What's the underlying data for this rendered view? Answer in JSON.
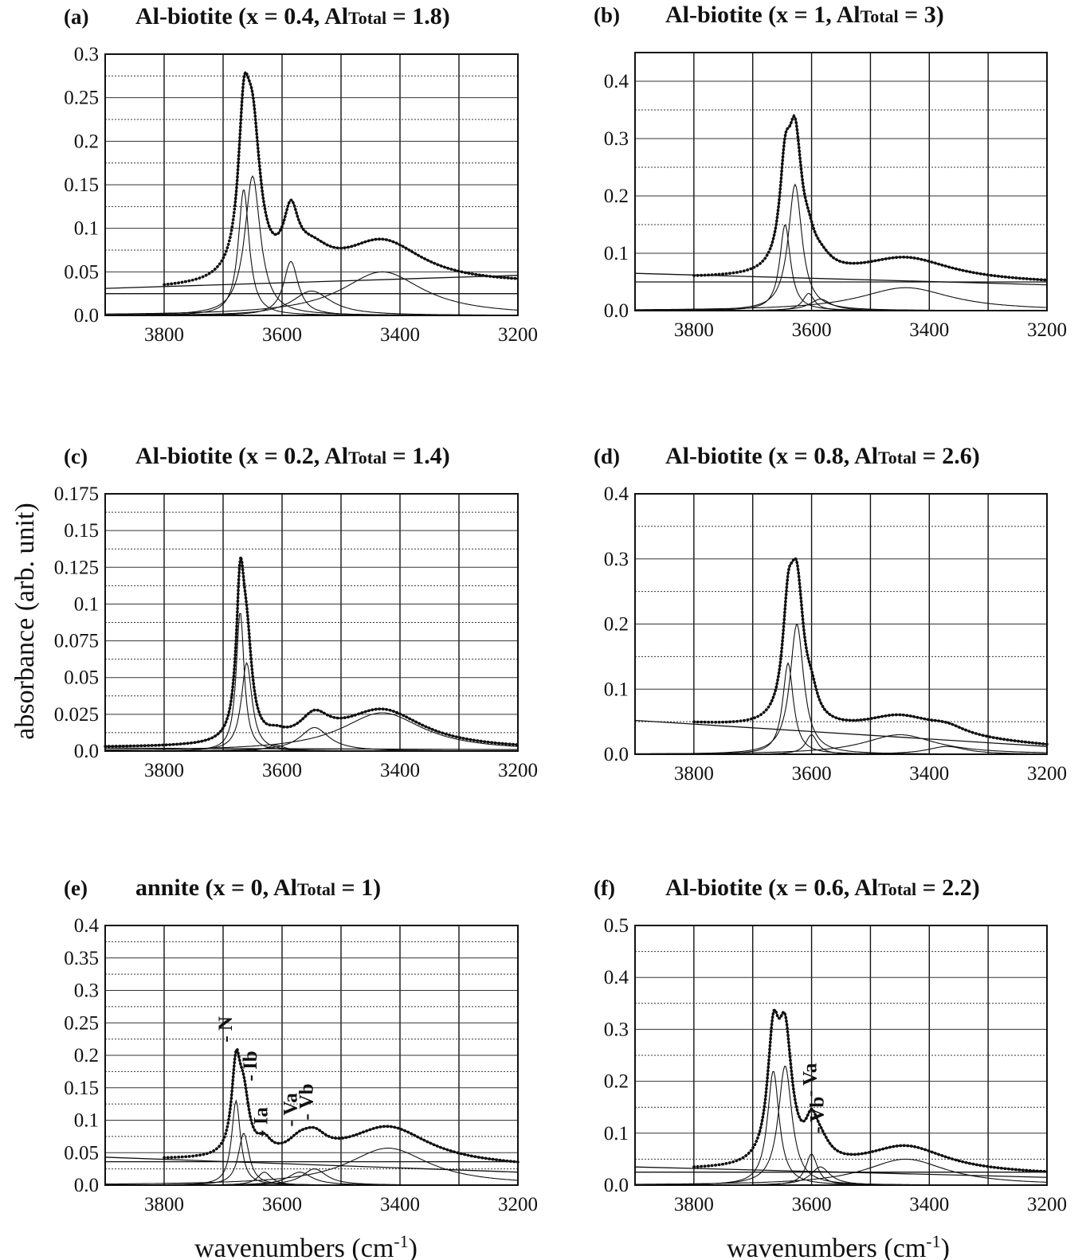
{
  "figure": {
    "ylabel": "absorbance (arb. unit)",
    "xlabel": "wavenumbers (cm-1)",
    "xlabel_main": "wavenumbers (cm",
    "xlabel_sup": "-1",
    "xlabel_close": ")"
  },
  "chart_data": [
    {
      "type": "line",
      "panel": "(a)",
      "title_main": "Al-biotite (x = 0.4, Al",
      "title_sub": "Total",
      "title_end": " = 1.8)",
      "xlim": [
        3900,
        3200
      ],
      "x_ticks": [
        3800,
        3600,
        3400,
        3200
      ],
      "ylim": [
        0,
        0.3
      ],
      "y_ticks": [
        0.0,
        0.05,
        0.1,
        0.15,
        0.2,
        0.25,
        0.3
      ],
      "y_tick_labels": [
        "0.0",
        "0.05",
        "0.1",
        "0.15",
        "0.2",
        "0.25",
        "0.3"
      ],
      "grid": true,
      "baselines": [
        {
          "x": [
            3900,
            3200
          ],
          "y": [
            0.031,
            0.046
          ]
        },
        {
          "x": [
            3900,
            3200
          ],
          "y": [
            0.025,
            0.025
          ]
        }
      ],
      "components": [
        {
          "center": 3665,
          "height": 0.145,
          "width": 11
        },
        {
          "center": 3650,
          "height": 0.16,
          "width": 16
        },
        {
          "center": 3585,
          "height": 0.062,
          "width": 15
        },
        {
          "center": 3550,
          "height": 0.028,
          "width": 40
        },
        {
          "center": 3430,
          "height": 0.05,
          "width": 85
        }
      ],
      "measured": {
        "x_start": 3800,
        "x_end": 3200
      },
      "envelope": {
        "x_start": 3680,
        "x_end": 3200
      },
      "labels": []
    },
    {
      "type": "line",
      "panel": "(b)",
      "title_main": "Al-biotite (x = 1, Al",
      "title_sub": "Total",
      "title_end": " = 3)",
      "xlim": [
        3900,
        3200
      ],
      "x_ticks": [
        3800,
        3600,
        3400,
        3200
      ],
      "ylim": [
        0,
        0.45
      ],
      "y_ticks": [
        0.0,
        0.1,
        0.2,
        0.3,
        0.4
      ],
      "y_tick_labels": [
        "0.0",
        "0.1",
        "0.2",
        "0.3",
        "0.4"
      ],
      "grid": true,
      "baselines": [
        {
          "x": [
            3900,
            3200
          ],
          "y": [
            0.065,
            0.045
          ]
        },
        {
          "x": [
            3900,
            3200
          ],
          "y": [
            0.05,
            0.05
          ]
        }
      ],
      "components": [
        {
          "center": 3645,
          "height": 0.15,
          "width": 11
        },
        {
          "center": 3628,
          "height": 0.22,
          "width": 14
        },
        {
          "center": 3605,
          "height": 0.03,
          "width": 12
        },
        {
          "center": 3585,
          "height": 0.02,
          "width": 22
        },
        {
          "center": 3440,
          "height": 0.04,
          "width": 95
        }
      ],
      "measured": {
        "x_start": 3800,
        "x_end": 3200
      },
      "envelope": {
        "x_start": 3670,
        "x_end": 3200
      },
      "labels": []
    },
    {
      "type": "line",
      "panel": "(c)",
      "title_main": "Al-biotite (x = 0.2, Al",
      "title_sub": "Total",
      "title_end": " = 1.4)",
      "xlim": [
        3900,
        3200
      ],
      "x_ticks": [
        3800,
        3600,
        3400,
        3200
      ],
      "ylim": [
        0,
        0.175
      ],
      "y_ticks": [
        0.0,
        0.025,
        0.05,
        0.075,
        0.1,
        0.125,
        0.15,
        0.175
      ],
      "y_tick_labels": [
        "0.0",
        "0.025",
        "0.05",
        "0.075",
        "0.1",
        "0.125",
        "0.15",
        "0.175"
      ],
      "grid": true,
      "baselines": [
        {
          "x": [
            3900,
            3200
          ],
          "y": [
            0.002,
            0.001
          ]
        }
      ],
      "components": [
        {
          "center": 3671,
          "height": 0.095,
          "width": 8
        },
        {
          "center": 3660,
          "height": 0.06,
          "width": 11
        },
        {
          "center": 3610,
          "height": 0.004,
          "width": 18
        },
        {
          "center": 3545,
          "height": 0.016,
          "width": 30
        },
        {
          "center": 3430,
          "height": 0.026,
          "width": 85
        }
      ],
      "measured": {
        "x_start": 3900,
        "x_end": 3200
      },
      "envelope": {
        "x_start": 3900,
        "x_end": 3200
      },
      "labels": []
    },
    {
      "type": "line",
      "panel": "(d)",
      "title_main": "Al-biotite (x = 0.8, Al",
      "title_sub": "Total",
      "title_end": " = 2.6)",
      "xlim": [
        3900,
        3200
      ],
      "x_ticks": [
        3800,
        3600,
        3400,
        3200
      ],
      "ylim": [
        0,
        0.4
      ],
      "y_ticks": [
        0.0,
        0.1,
        0.2,
        0.3,
        0.4
      ],
      "y_tick_labels": [
        "0.0",
        "0.1",
        "0.2",
        "0.3",
        "0.4"
      ],
      "grid": true,
      "baselines": [
        {
          "x": [
            3900,
            3200
          ],
          "y": [
            0.052,
            0.012
          ]
        }
      ],
      "components": [
        {
          "center": 3640,
          "height": 0.14,
          "width": 11
        },
        {
          "center": 3625,
          "height": 0.2,
          "width": 14
        },
        {
          "center": 3600,
          "height": 0.03,
          "width": 12
        },
        {
          "center": 3450,
          "height": 0.03,
          "width": 75
        },
        {
          "center": 3370,
          "height": 0.012,
          "width": 40
        }
      ],
      "measured": {
        "x_start": 3800,
        "x_end": 3200
      },
      "envelope": {
        "x_start": 3670,
        "x_end": 3200
      },
      "labels": []
    },
    {
      "type": "line",
      "panel": "(e)",
      "title_main": "annite (x = 0, Al",
      "title_sub": "Total",
      "title_end": " = 1)",
      "xlim": [
        3900,
        3200
      ],
      "x_ticks": [
        3800,
        3600,
        3400,
        3200
      ],
      "ylim": [
        0,
        0.4
      ],
      "y_ticks": [
        0.0,
        0.05,
        0.1,
        0.15,
        0.2,
        0.25,
        0.3,
        0.35,
        0.4
      ],
      "y_tick_labels": [
        "0.0",
        "0.05",
        "0.1",
        "0.15",
        "0.2",
        "0.25",
        "0.3",
        "0.35",
        "0.4"
      ],
      "grid": true,
      "baselines": [
        {
          "x": [
            3900,
            3200
          ],
          "y": [
            0.043,
            0.02
          ]
        },
        {
          "x": [
            3900,
            3200
          ],
          "y": [
            0.036,
            0.036
          ]
        }
      ],
      "components": [
        {
          "center": 3678,
          "height": 0.13,
          "width": 9
        },
        {
          "center": 3665,
          "height": 0.08,
          "width": 11
        },
        {
          "center": 3630,
          "height": 0.02,
          "width": 14
        },
        {
          "center": 3570,
          "height": 0.02,
          "width": 25
        },
        {
          "center": 3545,
          "height": 0.025,
          "width": 25
        },
        {
          "center": 3420,
          "height": 0.057,
          "width": 85
        }
      ],
      "measured": {
        "x_start": 3800,
        "x_end": 3200
      },
      "envelope": {
        "x_start": 3690,
        "x_end": 3200
      },
      "labels": [
        {
          "text": "N",
          "x": 3685,
          "y": 0.22
        },
        {
          "text": "Ib",
          "x": 3643,
          "y": 0.16
        },
        {
          "text": "Ia",
          "x": 3625,
          "y": 0.075
        },
        {
          "text": "Va",
          "x": 3575,
          "y": 0.09
        },
        {
          "text": "Vb",
          "x": 3548,
          "y": 0.1
        }
      ]
    },
    {
      "type": "line",
      "panel": "(f)",
      "title_main": "Al-biotite (x = 0.6, Al",
      "title_sub": "Total",
      "title_end": " = 2.2)",
      "xlim": [
        3900,
        3200
      ],
      "x_ticks": [
        3800,
        3600,
        3400,
        3200
      ],
      "ylim": [
        0,
        0.5
      ],
      "y_ticks": [
        0.0,
        0.1,
        0.2,
        0.3,
        0.4,
        0.5
      ],
      "y_tick_labels": [
        "0.0",
        "0.1",
        "0.2",
        "0.3",
        "0.4",
        "0.5"
      ],
      "grid": true,
      "baselines": [
        {
          "x": [
            3900,
            3200
          ],
          "y": [
            0.035,
            0.015
          ]
        },
        {
          "x": [
            3900,
            3200
          ],
          "y": [
            0.025,
            0.025
          ]
        }
      ],
      "components": [
        {
          "center": 3665,
          "height": 0.22,
          "width": 12
        },
        {
          "center": 3645,
          "height": 0.23,
          "width": 14
        },
        {
          "center": 3600,
          "height": 0.06,
          "width": 12
        },
        {
          "center": 3585,
          "height": 0.035,
          "width": 20
        },
        {
          "center": 3440,
          "height": 0.05,
          "width": 85
        }
      ],
      "measured": {
        "x_start": 3800,
        "x_end": 3200
      },
      "envelope": {
        "x_start": 3690,
        "x_end": 3200
      },
      "labels": [
        {
          "text": "Va",
          "x": 3592,
          "y": 0.17
        },
        {
          "text": "Vb",
          "x": 3580,
          "y": 0.1
        }
      ]
    }
  ]
}
